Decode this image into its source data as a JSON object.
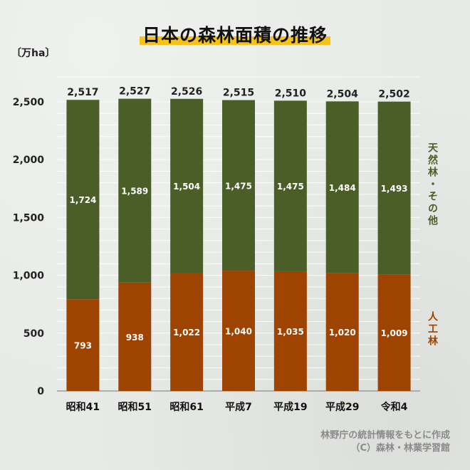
{
  "title": "日本の森林面積の推移",
  "unit_label": "〔万ha〕",
  "source": {
    "line1": "林野庁の統計情報をもとに作成",
    "line2": "（C）森林・林業学習館"
  },
  "colors": {
    "natural": "#4b5e27",
    "planted": "#9e4300",
    "title_highlight": "#f6c21a",
    "natural_label": "#4b5e27",
    "planted_label": "#9e4300"
  },
  "chart_data": {
    "type": "bar",
    "stacked": true,
    "title": "日本の森林面積の推移",
    "xlabel": "",
    "ylabel": "〔万ha〕",
    "ylim": [
      0,
      2500
    ],
    "yticks": [
      0,
      500,
      1000,
      1500,
      2000,
      2500
    ],
    "ytick_labels": [
      "0",
      "500",
      "1,000",
      "1,500",
      "2,000",
      "2,500"
    ],
    "grid": true,
    "categories": [
      "昭和41",
      "昭和51",
      "昭和61",
      "平成7",
      "平成19",
      "平成29",
      "令和4"
    ],
    "totals": [
      2517,
      2527,
      2526,
      2515,
      2510,
      2504,
      2502
    ],
    "total_labels": [
      "2,517",
      "2,527",
      "2,526",
      "2,515",
      "2,510",
      "2,504",
      "2,502"
    ],
    "series": [
      {
        "name": "人工林",
        "values": [
          793,
          938,
          1022,
          1040,
          1035,
          1020,
          1009
        ],
        "labels": [
          "793",
          "938",
          "1,022",
          "1,040",
          "1,035",
          "1,020",
          "1,009"
        ]
      },
      {
        "name": "天然林・その他",
        "values": [
          1724,
          1589,
          1504,
          1475,
          1475,
          1484,
          1493
        ],
        "labels": [
          "1,724",
          "1,589",
          "1,504",
          "1,475",
          "1,475",
          "1,484",
          "1,493"
        ]
      }
    ]
  }
}
